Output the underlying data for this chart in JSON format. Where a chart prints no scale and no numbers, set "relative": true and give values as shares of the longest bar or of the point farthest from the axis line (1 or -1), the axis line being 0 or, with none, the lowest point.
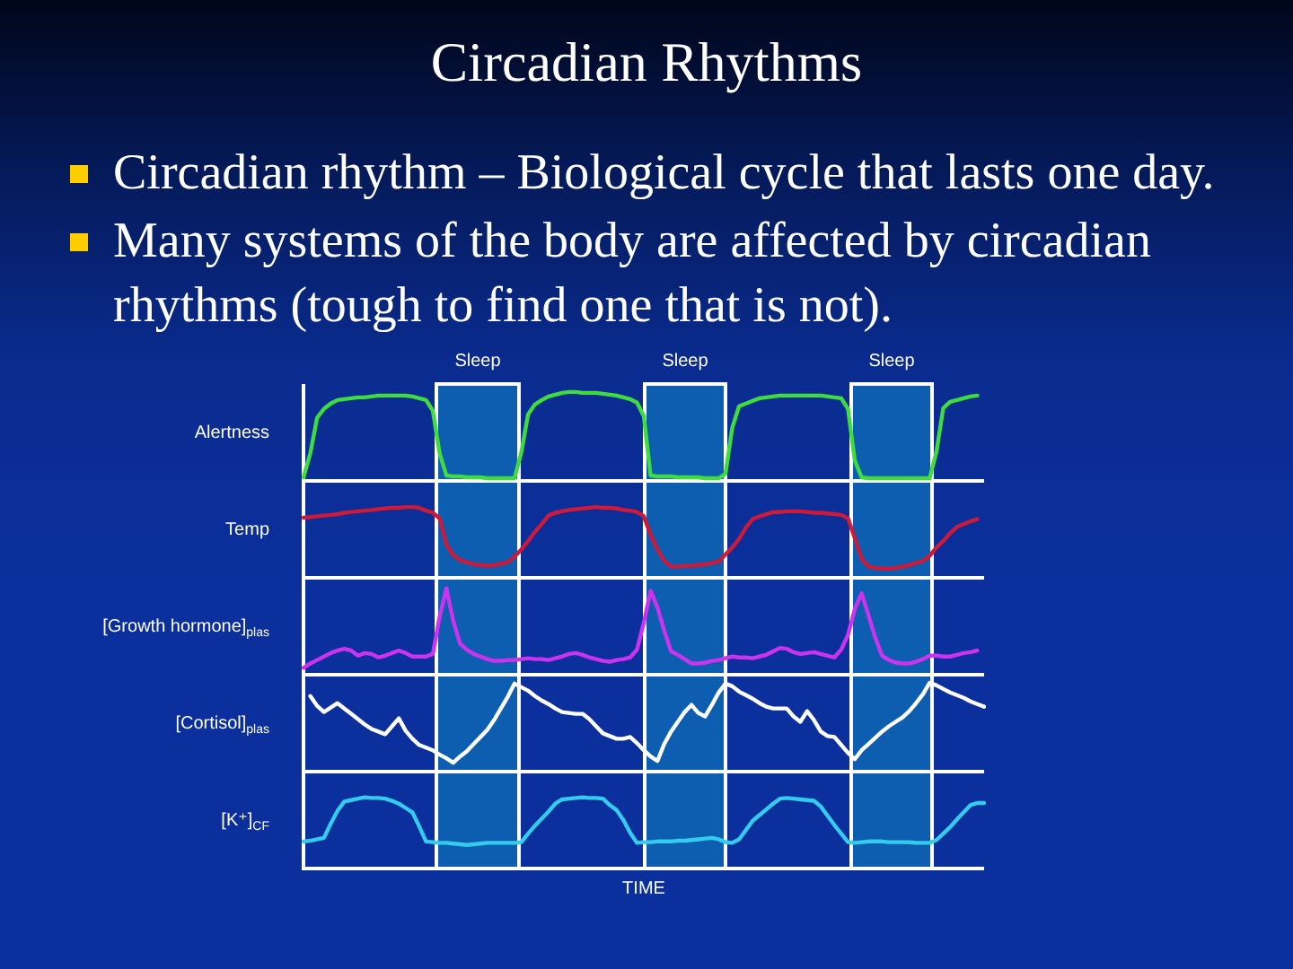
{
  "chart_data": [
    {
      "type": "other",
      "title": "Circadian Rhythms",
      "annotations": [
        "Circadian rhythm – Biological cycle that lasts one day.",
        "Many systems of the body are affected by circadian rhythms (tough to find one that is not)."
      ]
    },
    {
      "type": "line",
      "ylabel": "Alertness",
      "relative": true,
      "color": "#3fdc3f",
      "annotations": [
        "Sleep",
        "Sleep",
        "Sleep"
      ],
      "categories": [
        null,
        null,
        null,
        null,
        null,
        null,
        null,
        null,
        null,
        null,
        null,
        null,
        null,
        null,
        null,
        null,
        null,
        null,
        null,
        null,
        null,
        null,
        null,
        null,
        null,
        null,
        null,
        null,
        null,
        null,
        null,
        null,
        null,
        null,
        null,
        null,
        null,
        null,
        null,
        null,
        null,
        null,
        null,
        null,
        null,
        null,
        null,
        null,
        null,
        null,
        null,
        null,
        null,
        null,
        null,
        null,
        null,
        null,
        null,
        null,
        null,
        null,
        null,
        null,
        null,
        null,
        null,
        null,
        null,
        null,
        null,
        null,
        null,
        null,
        null,
        null,
        null,
        null,
        null,
        null,
        null,
        null,
        null,
        null,
        null,
        null,
        null,
        null,
        null,
        null,
        null,
        null,
        null,
        null,
        null,
        null,
        null,
        null,
        null,
        null,
        null
      ],
      "values": [
        0.04,
        0.31,
        0.71,
        0.81,
        0.87,
        0.91,
        0.92,
        0.93,
        0.94,
        0.94,
        0.95,
        0.96,
        0.96,
        0.96,
        0.96,
        0.96,
        0.95,
        0.93,
        0.91,
        0.79,
        0.31,
        0.06,
        0.05,
        0.05,
        0.04,
        0.04,
        0.04,
        0.03,
        0.03,
        0.03,
        0.03,
        0.03,
        0.32,
        0.75,
        0.86,
        0.91,
        0.95,
        0.97,
        0.99,
        1.0,
        1.0,
        0.99,
        0.99,
        0.99,
        0.98,
        0.97,
        0.96,
        0.94,
        0.92,
        0.88,
        0.73,
        0.06,
        0.05,
        0.05,
        0.05,
        0.04,
        0.04,
        0.04,
        0.04,
        0.03,
        0.03,
        0.03,
        0.08,
        0.6,
        0.84,
        0.87,
        0.9,
        0.93,
        0.94,
        0.95,
        0.96,
        0.96,
        0.96,
        0.96,
        0.96,
        0.96,
        0.96,
        0.95,
        0.94,
        0.93,
        0.81,
        0.23,
        0.04,
        0.03,
        0.03,
        0.03,
        0.03,
        0.03,
        0.03,
        0.03,
        0.03,
        0.03,
        0.03,
        0.33,
        0.82,
        0.89,
        0.91,
        0.93,
        0.95,
        0.96,
        null
      ]
    },
    {
      "type": "line",
      "ylabel": "Temp",
      "relative": true,
      "color": "#cc1a3a",
      "categories": [
        null,
        null,
        null,
        null,
        null,
        null,
        null,
        null,
        null,
        null,
        null,
        null,
        null,
        null,
        null,
        null,
        null,
        null,
        null,
        null,
        null,
        null,
        null,
        null,
        null,
        null,
        null,
        null,
        null,
        null,
        null,
        null,
        null,
        null,
        null,
        null,
        null,
        null,
        null,
        null,
        null,
        null,
        null,
        null,
        null,
        null,
        null,
        null,
        null,
        null,
        null,
        null,
        null,
        null,
        null,
        null,
        null,
        null,
        null,
        null,
        null,
        null,
        null,
        null,
        null,
        null,
        null,
        null,
        null,
        null,
        null,
        null,
        null,
        null,
        null,
        null,
        null,
        null,
        null,
        null,
        null,
        null,
        null,
        null,
        null,
        null,
        null,
        null,
        null,
        null,
        null,
        null,
        null,
        null,
        null,
        null,
        null,
        null,
        null,
        null,
        null
      ],
      "values": [
        0.85,
        0.86,
        0.87,
        0.88,
        0.89,
        0.9,
        0.92,
        0.93,
        0.94,
        0.95,
        0.96,
        0.97,
        0.98,
        0.99,
        0.99,
        1.0,
        1.0,
        0.99,
        0.95,
        0.92,
        0.84,
        0.47,
        0.32,
        0.25,
        0.22,
        0.19,
        0.18,
        0.17,
        0.18,
        0.2,
        0.22,
        0.3,
        0.4,
        0.52,
        0.65,
        0.76,
        0.88,
        0.92,
        0.94,
        0.96,
        0.97,
        0.98,
        0.99,
        1.0,
        0.99,
        0.99,
        0.98,
        0.96,
        0.95,
        0.93,
        0.87,
        0.61,
        0.4,
        0.24,
        0.16,
        0.16,
        0.17,
        0.17,
        0.18,
        0.19,
        0.21,
        0.23,
        0.33,
        0.43,
        0.55,
        0.71,
        0.83,
        0.87,
        0.9,
        0.93,
        0.93,
        0.94,
        0.94,
        0.94,
        0.93,
        0.92,
        0.92,
        0.91,
        0.9,
        0.89,
        0.84,
        0.56,
        0.27,
        0.16,
        0.14,
        0.13,
        0.13,
        0.14,
        0.16,
        0.18,
        0.21,
        0.24,
        0.31,
        0.43,
        0.52,
        0.63,
        0.72,
        0.76,
        0.8,
        0.83,
        null
      ]
    },
    {
      "type": "line",
      "ylabel": "[Growth hormone]$_{plas}$",
      "relative": true,
      "color": "#cc33ee",
      "categories": [
        null,
        null,
        null,
        null,
        null,
        null,
        null,
        null,
        null,
        null,
        null,
        null,
        null,
        null,
        null,
        null,
        null,
        null,
        null,
        null,
        null,
        null,
        null,
        null,
        null,
        null,
        null,
        null,
        null,
        null,
        null,
        null,
        null,
        null,
        null,
        null,
        null,
        null,
        null,
        null,
        null,
        null,
        null,
        null,
        null,
        null,
        null,
        null,
        null,
        null,
        null,
        null,
        null,
        null,
        null,
        null,
        null,
        null,
        null,
        null,
        null,
        null,
        null,
        null,
        null,
        null,
        null,
        null,
        null,
        null,
        null,
        null,
        null,
        null,
        null,
        null,
        null,
        null,
        null,
        null,
        null,
        null,
        null,
        null,
        null,
        null,
        null,
        null,
        null,
        null,
        null,
        null,
        null,
        null,
        null,
        null,
        null,
        null,
        null,
        null,
        null
      ],
      "values": [
        0.08,
        0.13,
        0.17,
        0.21,
        0.25,
        0.28,
        0.3,
        0.28,
        0.22,
        0.25,
        0.24,
        0.2,
        0.22,
        0.25,
        0.28,
        0.25,
        0.21,
        0.21,
        0.21,
        0.24,
        0.67,
        1.0,
        0.62,
        0.36,
        0.29,
        0.24,
        0.21,
        0.18,
        0.16,
        0.16,
        0.17,
        0.17,
        0.18,
        0.19,
        0.18,
        0.18,
        0.17,
        0.19,
        0.21,
        0.24,
        0.25,
        0.23,
        0.2,
        0.18,
        0.16,
        0.15,
        0.17,
        0.18,
        0.2,
        0.29,
        0.6,
        0.97,
        0.78,
        0.51,
        0.27,
        0.23,
        0.18,
        0.13,
        0.13,
        0.14,
        0.16,
        0.17,
        0.19,
        0.21,
        0.2,
        0.2,
        0.19,
        0.21,
        0.23,
        0.27,
        0.31,
        0.3,
        0.26,
        0.24,
        0.25,
        0.26,
        0.24,
        0.22,
        0.2,
        0.29,
        0.46,
        0.76,
        0.94,
        0.69,
        0.43,
        0.22,
        0.17,
        0.14,
        0.13,
        0.13,
        0.15,
        0.18,
        0.22,
        0.22,
        0.21,
        0.21,
        0.23,
        0.25,
        0.26,
        0.28,
        null
      ]
    },
    {
      "type": "line",
      "ylabel": "[Cortisol]$_{plas}$",
      "relative": true,
      "color": "#ffffff",
      "categories": [
        null,
        null,
        null,
        null,
        null,
        null,
        null,
        null,
        null,
        null,
        null,
        null,
        null,
        null,
        null,
        null,
        null,
        null,
        null,
        null,
        null,
        null,
        null,
        null,
        null,
        null,
        null,
        null,
        null,
        null,
        null,
        null,
        null,
        null,
        null,
        null,
        null,
        null,
        null,
        null,
        null,
        null,
        null,
        null,
        null,
        null,
        null,
        null,
        null,
        null,
        null,
        null,
        null,
        null,
        null,
        null,
        null,
        null,
        null,
        null,
        null,
        null,
        null,
        null,
        null,
        null,
        null,
        null,
        null,
        null,
        null,
        null,
        null,
        null,
        null,
        null,
        null,
        null,
        null,
        null,
        null,
        null,
        null,
        null,
        null,
        null,
        null,
        null,
        null,
        null,
        null,
        null,
        null,
        null,
        null,
        null,
        null,
        null,
        null,
        null,
        null
      ],
      "values": [
        null,
        0.85,
        0.74,
        0.67,
        0.72,
        0.77,
        0.71,
        0.65,
        0.59,
        0.53,
        0.48,
        0.45,
        0.42,
        0.51,
        0.6,
        0.46,
        0.37,
        0.3,
        0.27,
        0.24,
        0.19,
        0.15,
        0.1,
        0.17,
        0.23,
        0.31,
        0.39,
        0.47,
        0.58,
        0.71,
        0.84,
        0.99,
        0.95,
        0.91,
        0.85,
        0.8,
        0.76,
        0.71,
        0.67,
        0.66,
        0.65,
        0.65,
        0.59,
        0.51,
        0.43,
        0.4,
        0.37,
        0.37,
        0.39,
        0.32,
        0.24,
        0.17,
        0.12,
        0.31,
        0.45,
        0.56,
        0.67,
        0.75,
        0.66,
        0.62,
        0.75,
        0.89,
        0.99,
        0.96,
        0.9,
        0.86,
        0.82,
        0.77,
        0.73,
        0.71,
        0.71,
        0.71,
        0.62,
        0.56,
        0.68,
        0.58,
        0.45,
        0.4,
        0.39,
        0.3,
        0.21,
        0.14,
        0.24,
        0.31,
        0.38,
        0.45,
        0.51,
        0.56,
        0.61,
        0.68,
        0.77,
        0.87,
        1.0,
        0.97,
        0.93,
        0.89,
        0.86,
        0.83,
        0.79,
        0.76,
        0.73
      ]
    },
    {
      "type": "line",
      "ylabel": "[K⁺]$_{CF}$",
      "xlabel": "TIME",
      "relative": true,
      "color": "#33ccee",
      "categories": [
        null,
        null,
        null,
        null,
        null,
        null,
        null,
        null,
        null,
        null,
        null,
        null,
        null,
        null,
        null,
        null,
        null,
        null,
        null,
        null,
        null,
        null,
        null,
        null,
        null,
        null,
        null,
        null,
        null,
        null,
        null,
        null,
        null,
        null,
        null,
        null,
        null,
        null,
        null,
        null,
        null,
        null,
        null,
        null,
        null,
        null,
        null,
        null,
        null,
        null,
        null,
        null,
        null,
        null,
        null,
        null,
        null,
        null,
        null,
        null,
        null,
        null,
        null,
        null,
        null,
        null,
        null,
        null,
        null,
        null,
        null,
        null,
        null,
        null,
        null,
        null,
        null,
        null,
        null,
        null,
        null,
        null,
        null,
        null,
        null,
        null,
        null,
        null,
        null,
        null,
        null,
        null,
        null,
        null,
        null,
        null,
        null,
        null,
        null,
        null,
        null
      ],
      "values": [
        0.38,
        0.39,
        0.41,
        0.43,
        0.63,
        0.81,
        0.94,
        0.96,
        0.98,
        1.0,
        0.99,
        0.99,
        0.98,
        0.95,
        0.91,
        0.85,
        0.79,
        0.59,
        0.38,
        0.37,
        0.36,
        0.36,
        0.35,
        0.34,
        0.33,
        0.34,
        0.35,
        0.36,
        0.36,
        0.36,
        0.36,
        0.36,
        0.37,
        0.49,
        0.6,
        0.7,
        0.8,
        0.91,
        0.97,
        0.98,
        0.99,
        1.0,
        0.99,
        0.99,
        0.98,
        0.89,
        0.82,
        0.68,
        0.5,
        0.36,
        0.37,
        0.37,
        0.38,
        0.38,
        0.38,
        0.39,
        0.39,
        0.4,
        0.41,
        0.42,
        0.43,
        0.41,
        0.37,
        0.36,
        0.41,
        0.54,
        0.67,
        0.75,
        0.83,
        0.91,
        0.98,
        0.99,
        0.98,
        0.97,
        0.96,
        0.95,
        0.87,
        0.74,
        0.61,
        0.49,
        0.37,
        0.36,
        0.37,
        0.38,
        0.38,
        0.38,
        0.37,
        0.37,
        0.37,
        0.37,
        0.36,
        0.36,
        0.36,
        0.4,
        0.49,
        0.58,
        0.69,
        0.79,
        0.89,
        0.92,
        0.92
      ]
    }
  ]
}
